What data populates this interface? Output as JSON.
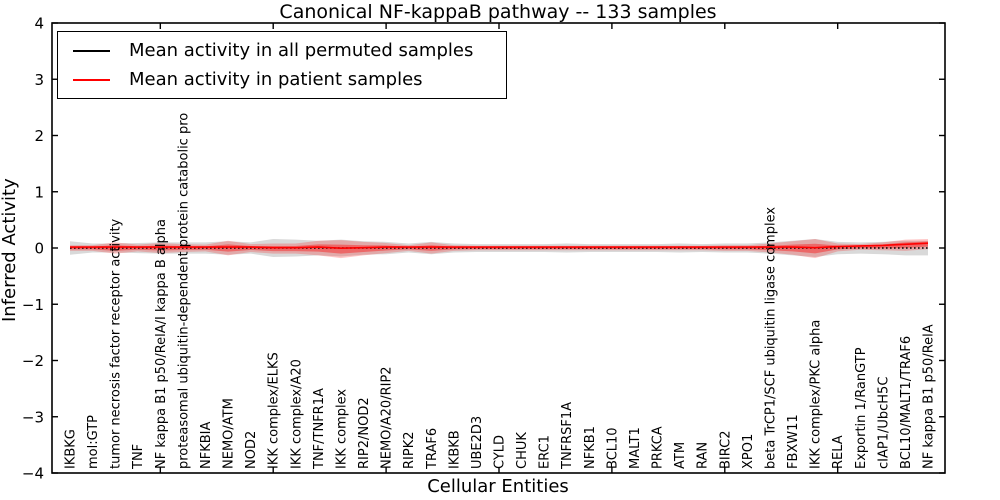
{
  "title": "Canonical NF-kappaB pathway -- 133 samples",
  "legend": {
    "items": [
      {
        "label": "Mean activity in all permuted samples",
        "color": "#000000"
      },
      {
        "label": "Mean activity in patient samples",
        "color": "#ff0000"
      }
    ]
  },
  "chart_data": {
    "type": "line",
    "title": "Canonical NF-kappaB pathway -- 133 samples",
    "xlabel": "Cellular Entities",
    "ylabel": "Inferred Activity",
    "ylim": [
      -4,
      4
    ],
    "grid": false,
    "legend_position": "upper left",
    "yticks": [
      {
        "value": 4,
        "label": "4"
      },
      {
        "value": 3,
        "label": "3"
      },
      {
        "value": 2,
        "label": "2"
      },
      {
        "value": 1,
        "label": "1"
      },
      {
        "value": 0,
        "label": "0"
      },
      {
        "value": -1,
        "label": "−1"
      },
      {
        "value": -2,
        "label": "−2"
      },
      {
        "value": -3,
        "label": "−3"
      },
      {
        "value": -4,
        "label": "−4"
      }
    ],
    "major_tick_indices": [
      4,
      9,
      14,
      19,
      24,
      29,
      34
    ],
    "categories": [
      "IKBKG",
      "mol:GTP",
      "tumor necrosis factor receptor activity",
      "TNF",
      "NF kappa B1 p50/RelA/I kappa B alpha",
      "proteasomal ubiquitin-dependent protein catabolic pro",
      "NFKBIA",
      "NEMO/ATM",
      "NOD2",
      "IKK complex/ELKS",
      "IKK complex/A20",
      "TNF/TNFR1A",
      "IKK complex",
      "RIP2/NOD2",
      "NEMO/A20/RIP2",
      "RIPK2",
      "TRAF6",
      "IKBKB",
      "UBE2D3",
      "CYLD",
      "CHUK",
      "ERC1",
      "TNFRSF1A",
      "NFKB1",
      "BCL10",
      "MALT1",
      "PRKCA",
      "ATM",
      "RAN",
      "BIRC2",
      "XPO1",
      "beta TrCP1/SCF ubiquitin ligase complex",
      "FBXW11",
      "IKK complex/PKC alpha",
      "RELA",
      "Exportin 1/RanGTP",
      "cIAP1/UbcH5C",
      "BCL10/MALT1/TRAF6",
      "NF kappa B1 p50/RelA"
    ],
    "series": [
      {
        "key": "permuted",
        "name": "Mean activity in all permuted samples",
        "color": "#000000",
        "width": 1.4,
        "dash": "1.6 2.4",
        "values": [
          0,
          0,
          0,
          0,
          0,
          0,
          0,
          0,
          0,
          0,
          0,
          0,
          0,
          0,
          0,
          0,
          0,
          0,
          0,
          0,
          0,
          0,
          0,
          0,
          0,
          0,
          0,
          0,
          0,
          0,
          0,
          0,
          0,
          0,
          0,
          0,
          0,
          0,
          0
        ]
      },
      {
        "key": "patient",
        "name": "Mean activity in patient samples",
        "color": "#ff0000",
        "width": 1.6,
        "dash": "",
        "values": [
          0,
          0,
          0,
          0,
          0,
          0,
          0,
          0,
          0,
          -0.01,
          -0.01,
          0,
          -0.02,
          -0.01,
          0,
          0,
          0,
          0,
          0,
          0,
          0,
          0,
          0,
          0,
          0,
          0,
          0,
          0,
          0,
          0,
          0,
          0,
          0,
          -0.01,
          0.01,
          0.02,
          0.03,
          0.05,
          0.07
        ]
      }
    ],
    "bands": [
      {
        "name": "permuted-range",
        "center": "permuted",
        "color": "#777777",
        "opacity": 0.28,
        "halfwidths": [
          0.12,
          0.08,
          0.08,
          0.09,
          0.1,
          0.1,
          0.1,
          0.12,
          0.1,
          0.16,
          0.15,
          0.13,
          0.15,
          0.12,
          0.11,
          0.08,
          0.11,
          0.08,
          0.07,
          0.07,
          0.07,
          0.07,
          0.08,
          0.07,
          0.07,
          0.07,
          0.07,
          0.08,
          0.07,
          0.08,
          0.08,
          0.1,
          0.13,
          0.16,
          0.11,
          0.1,
          0.11,
          0.13,
          0.13
        ]
      },
      {
        "name": "patient-range-outer",
        "center": "patient",
        "color": "#ff0000",
        "opacity": 0.22,
        "halfwidths": [
          0.05,
          0.05,
          0.1,
          0.06,
          0.09,
          0.07,
          0.06,
          0.13,
          0.07,
          0.09,
          0.09,
          0.13,
          0.16,
          0.12,
          0.09,
          0.05,
          0.1,
          0.05,
          0.04,
          0.04,
          0.04,
          0.04,
          0.04,
          0.04,
          0.04,
          0.04,
          0.04,
          0.04,
          0.04,
          0.05,
          0.05,
          0.08,
          0.12,
          0.17,
          0.07,
          0.05,
          0.07,
          0.1,
          0.09
        ]
      },
      {
        "name": "patient-range-inner",
        "center": "patient",
        "color": "#ff0000",
        "opacity": 0.38,
        "halfwidths": [
          0.025,
          0.025,
          0.05,
          0.03,
          0.045,
          0.035,
          0.03,
          0.065,
          0.035,
          0.045,
          0.045,
          0.065,
          0.08,
          0.06,
          0.045,
          0.025,
          0.05,
          0.025,
          0.02,
          0.02,
          0.02,
          0.02,
          0.02,
          0.02,
          0.02,
          0.02,
          0.02,
          0.02,
          0.02,
          0.025,
          0.025,
          0.04,
          0.06,
          0.085,
          0.035,
          0.025,
          0.035,
          0.05,
          0.045
        ]
      }
    ]
  }
}
